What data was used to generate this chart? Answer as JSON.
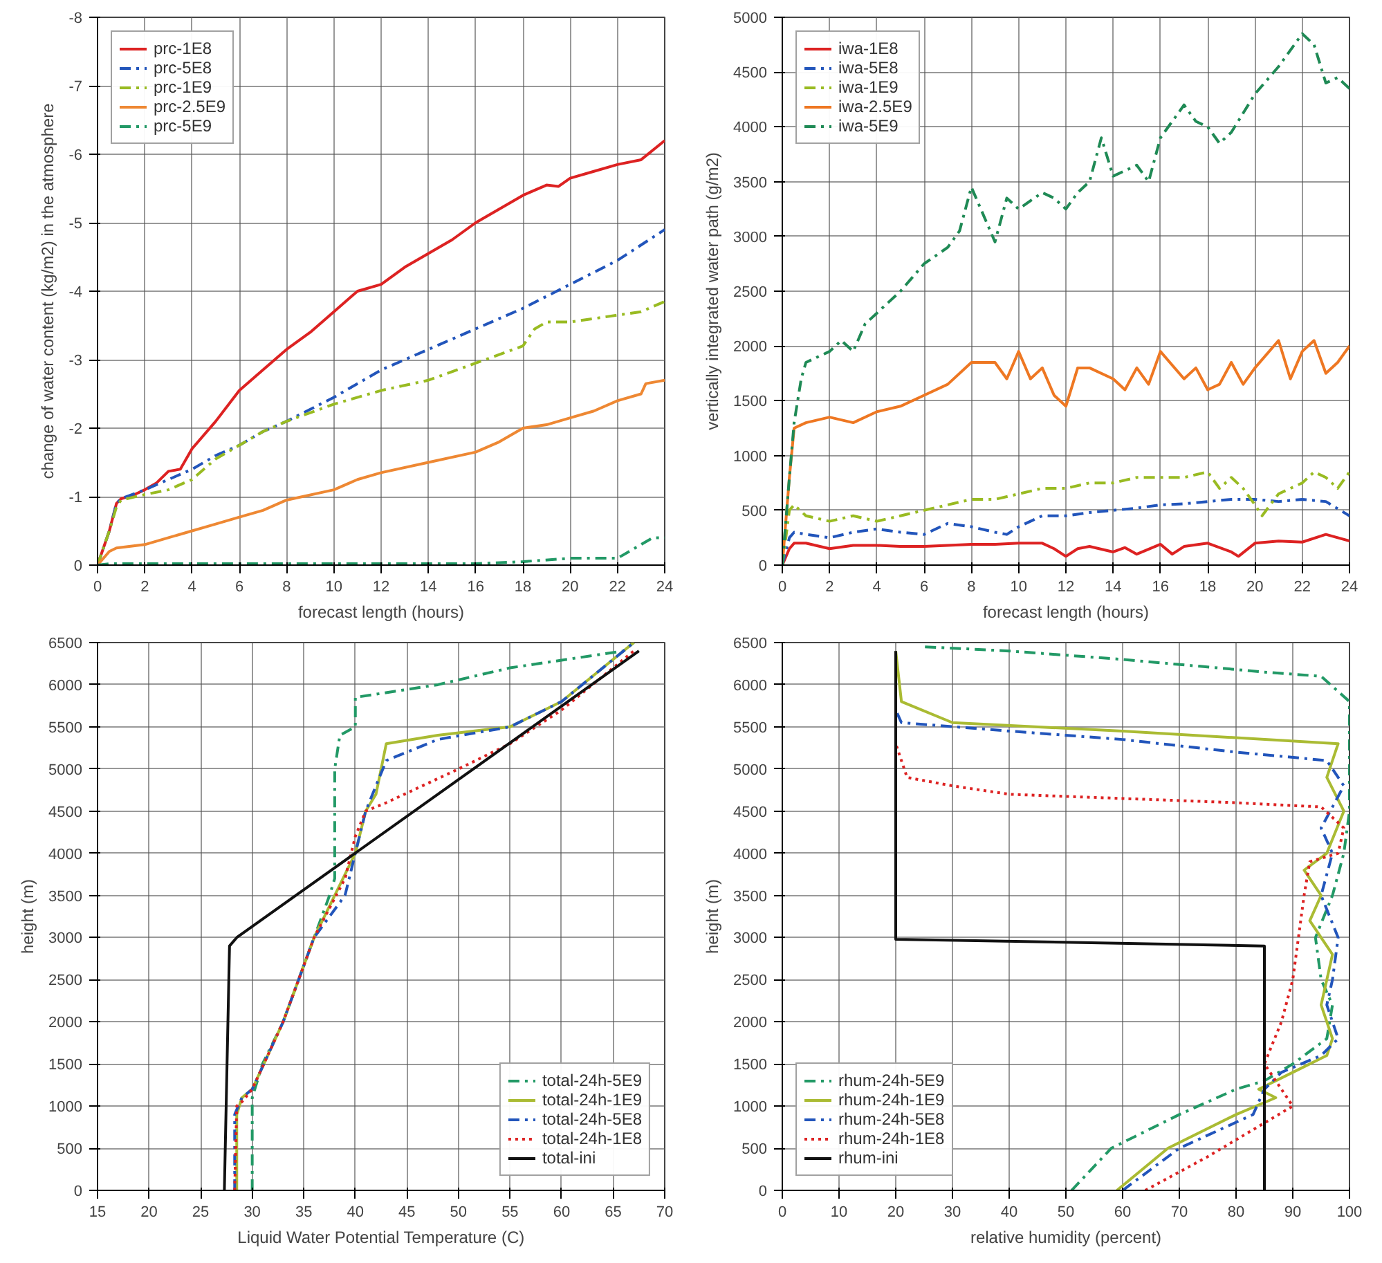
{
  "chart_data": [
    {
      "type": "line",
      "xlabel": "forecast length (hours)",
      "ylabel": "change of water content (kg/m2) in the atmosphere",
      "xlim": [
        0,
        24
      ],
      "ylim": [
        0,
        -8
      ],
      "xticks": [
        0,
        2,
        4,
        6,
        8,
        10,
        12,
        14,
        16,
        18,
        20,
        22,
        24
      ],
      "yticks": [
        0,
        -1,
        -2,
        -3,
        -4,
        -5,
        -6,
        -7,
        -8
      ],
      "grid": true,
      "legend": "top left",
      "series": [
        {
          "name": "prc-1E8",
          "color": "#dd2222",
          "line_style": "solid",
          "x": [
            0,
            0.5,
            0.8,
            1,
            1.5,
            2,
            2.5,
            3,
            3.5,
            4,
            5,
            6,
            7,
            8,
            9,
            10,
            11,
            12,
            13,
            14,
            15,
            16,
            17,
            18,
            19,
            19.5,
            20,
            21,
            22,
            23,
            24
          ],
          "values": [
            0,
            -0.5,
            -0.9,
            -0.97,
            -1.02,
            -1.1,
            -1.2,
            -1.37,
            -1.4,
            -1.7,
            -2.1,
            -2.55,
            -2.85,
            -3.15,
            -3.4,
            -3.7,
            -4.0,
            -4.1,
            -4.35,
            -4.55,
            -4.75,
            -5.0,
            -5.2,
            -5.4,
            -5.55,
            -5.53,
            -5.65,
            -5.75,
            -5.85,
            -5.92,
            -6.2
          ]
        },
        {
          "name": "prc-5E8",
          "color": "#2255bb",
          "line_style": "dashed",
          "x": [
            0,
            0.5,
            0.8,
            1,
            2,
            3,
            4,
            5,
            6,
            7,
            8,
            10,
            12,
            14,
            16,
            18,
            20,
            22,
            24
          ],
          "values": [
            0,
            -0.5,
            -0.9,
            -0.97,
            -1.1,
            -1.25,
            -1.4,
            -1.6,
            -1.75,
            -1.95,
            -2.1,
            -2.45,
            -2.85,
            -3.15,
            -3.45,
            -3.75,
            -4.1,
            -4.45,
            -4.9
          ]
        },
        {
          "name": "prc-1E9",
          "color": "#99bb22",
          "line_style": "dashed",
          "x": [
            0,
            0.5,
            0.8,
            1,
            2,
            3,
            4,
            5,
            6,
            7,
            8,
            10,
            12,
            14,
            16,
            18,
            18.5,
            19,
            20,
            21,
            22,
            23,
            24
          ],
          "values": [
            0,
            -0.5,
            -0.85,
            -0.95,
            -1.03,
            -1.1,
            -1.25,
            -1.55,
            -1.75,
            -1.95,
            -2.1,
            -2.35,
            -2.55,
            -2.7,
            -2.95,
            -3.2,
            -3.45,
            -3.55,
            -3.55,
            -3.6,
            -3.65,
            -3.7,
            -3.85
          ]
        },
        {
          "name": "prc-2.5E9",
          "color": "#ee8833",
          "line_style": "solid",
          "x": [
            0,
            0.5,
            0.8,
            2,
            3,
            4,
            5,
            6,
            7,
            8,
            10,
            11,
            12,
            14,
            16,
            17,
            18,
            19,
            20,
            21,
            22,
            23,
            23.2,
            24
          ],
          "values": [
            0,
            -0.2,
            -0.25,
            -0.3,
            -0.4,
            -0.5,
            -0.6,
            -0.7,
            -0.8,
            -0.95,
            -1.1,
            -1.25,
            -1.35,
            -1.5,
            -1.65,
            -1.8,
            -2.0,
            -2.05,
            -2.15,
            -2.25,
            -2.4,
            -2.5,
            -2.65,
            -2.7
          ]
        },
        {
          "name": "prc-5E9",
          "color": "#229966",
          "line_style": "dashed",
          "x": [
            0,
            0.5,
            16,
            18,
            20,
            22,
            22.5,
            23,
            23.5,
            24
          ],
          "values": [
            0,
            -0.02,
            -0.02,
            -0.05,
            -0.1,
            -0.1,
            -0.2,
            -0.3,
            -0.4,
            -0.4
          ]
        }
      ]
    },
    {
      "type": "line",
      "xlabel": "forecast length (hours)",
      "ylabel": "vertically integrated water path (g/m2)",
      "xlim": [
        0,
        24
      ],
      "ylim": [
        0,
        5000
      ],
      "xticks": [
        0,
        2,
        4,
        6,
        8,
        10,
        12,
        14,
        16,
        18,
        20,
        22,
        24
      ],
      "yticks": [
        0,
        500,
        1000,
        1500,
        2000,
        2500,
        3000,
        3500,
        4000,
        4500,
        5000
      ],
      "grid": true,
      "legend": "top left",
      "series": [
        {
          "name": "iwa-1E8",
          "color": "#dd2222",
          "line_style": "solid",
          "x": [
            0,
            0.3,
            0.5,
            1,
            2,
            3,
            4,
            5,
            6,
            7,
            8,
            9,
            10,
            11,
            11.5,
            12,
            12.5,
            13,
            14,
            14.5,
            15,
            16,
            16.5,
            17,
            18,
            19,
            19.3,
            20,
            21,
            22,
            23,
            24
          ],
          "values": [
            0,
            150,
            200,
            200,
            150,
            180,
            180,
            170,
            170,
            180,
            190,
            190,
            200,
            200,
            150,
            80,
            150,
            170,
            120,
            160,
            100,
            190,
            100,
            170,
            200,
            120,
            80,
            200,
            220,
            210,
            280,
            220
          ]
        },
        {
          "name": "iwa-5E8",
          "color": "#2255bb",
          "line_style": "dashed",
          "x": [
            0,
            0.3,
            0.5,
            1,
            2,
            3,
            4,
            5,
            6,
            7,
            8,
            9,
            9.5,
            10,
            11,
            12,
            13,
            14,
            15,
            16,
            17,
            18,
            19,
            20,
            21,
            22,
            23,
            24
          ],
          "values": [
            0,
            250,
            300,
            280,
            250,
            300,
            330,
            300,
            280,
            380,
            350,
            300,
            280,
            350,
            450,
            450,
            480,
            500,
            520,
            550,
            560,
            580,
            600,
            600,
            580,
            600,
            580,
            450
          ]
        },
        {
          "name": "iwa-1E9",
          "color": "#99bb22",
          "line_style": "dashed",
          "x": [
            0,
            0.3,
            0.5,
            1,
            2,
            3,
            4,
            5,
            6,
            7,
            8,
            9,
            10,
            11,
            12,
            13,
            14,
            15,
            16,
            17,
            18,
            18.5,
            19,
            19.5,
            20,
            20.3,
            21,
            22,
            22.5,
            23,
            23.5,
            24
          ],
          "values": [
            0,
            500,
            550,
            450,
            400,
            450,
            400,
            450,
            500,
            550,
            600,
            600,
            650,
            700,
            700,
            750,
            750,
            800,
            800,
            800,
            850,
            700,
            800,
            700,
            550,
            450,
            650,
            750,
            850,
            800,
            700,
            850
          ]
        },
        {
          "name": "iwa-2.5E9",
          "color": "#ee7722",
          "line_style": "solid",
          "x": [
            0,
            0.3,
            0.5,
            1,
            2,
            3,
            4,
            5,
            6,
            7,
            8,
            9,
            9.5,
            10,
            10.5,
            11,
            11.5,
            12,
            12.5,
            13,
            14,
            14.5,
            15,
            15.5,
            16,
            17,
            17.5,
            18,
            18.5,
            19,
            19.5,
            20,
            21,
            21.5,
            22,
            22.5,
            23,
            23.5,
            24
          ],
          "values": [
            0,
            800,
            1250,
            1300,
            1350,
            1300,
            1400,
            1450,
            1550,
            1650,
            1850,
            1850,
            1700,
            1950,
            1700,
            1800,
            1550,
            1450,
            1800,
            1800,
            1700,
            1600,
            1800,
            1650,
            1950,
            1700,
            1800,
            1600,
            1650,
            1850,
            1650,
            1800,
            2050,
            1700,
            1950,
            2050,
            1750,
            1850,
            2000
          ]
        },
        {
          "name": "iwa-5E9",
          "color": "#1f8a55",
          "line_style": "dashed",
          "x": [
            0,
            0.3,
            0.5,
            0.8,
            1,
            1.5,
            2,
            2.5,
            3,
            3.5,
            4,
            5,
            6,
            7,
            7.5,
            8,
            8.5,
            9,
            9.5,
            10,
            11,
            11.5,
            12,
            12.5,
            13,
            13.5,
            14,
            15,
            15.5,
            16,
            17,
            17.5,
            18,
            18.5,
            19,
            20,
            21,
            22,
            22.5,
            23,
            23.5,
            24
          ],
          "values": [
            0,
            800,
            1300,
            1700,
            1850,
            1900,
            1950,
            2050,
            1950,
            2200,
            2300,
            2500,
            2750,
            2900,
            3050,
            3450,
            3200,
            2950,
            3350,
            3250,
            3400,
            3350,
            3250,
            3400,
            3500,
            3900,
            3550,
            3650,
            3500,
            3900,
            4200,
            4050,
            4000,
            3850,
            3950,
            4300,
            4550,
            4850,
            4750,
            4400,
            4450,
            4350
          ]
        }
      ]
    },
    {
      "type": "line",
      "xlabel": "Liquid Water Potential Temperature (C)",
      "ylabel": "height (m)",
      "xlim": [
        15,
        70
      ],
      "ylim": [
        0,
        6500
      ],
      "xticks": [
        15,
        20,
        25,
        30,
        35,
        40,
        45,
        50,
        55,
        60,
        65,
        70
      ],
      "yticks": [
        0,
        500,
        1000,
        1500,
        2000,
        2500,
        3000,
        3500,
        4000,
        4500,
        5000,
        5500,
        6000,
        6500
      ],
      "grid": true,
      "legend": "bottom right",
      "series": [
        {
          "name": "total-24h-5E9",
          "color": "#229966",
          "line_style": "dashed",
          "x": [
            30,
            30,
            31,
            33,
            36,
            37.5,
            38,
            38,
            38,
            38.5,
            40,
            40,
            48,
            55,
            66,
            67
          ],
          "values": [
            0,
            1100,
            1500,
            2000,
            3000,
            3500,
            3700,
            4500,
            5000,
            5400,
            5500,
            5850,
            6000,
            6200,
            6400,
            6500
          ]
        },
        {
          "name": "total-24h-1E9",
          "color": "#aabb33",
          "line_style": "solid",
          "x": [
            28.5,
            28.5,
            29,
            30,
            33,
            36,
            38,
            40,
            41,
            42,
            43,
            48,
            55,
            60,
            67
          ],
          "values": [
            0,
            900,
            1100,
            1200,
            2000,
            3000,
            3500,
            4000,
            4500,
            4700,
            5300,
            5400,
            5500,
            5800,
            6500
          ]
        },
        {
          "name": "total-24h-5E8",
          "color": "#2255bb",
          "line_style": "dashed",
          "x": [
            28.3,
            28.3,
            29,
            30,
            33,
            36,
            39,
            40,
            41,
            42,
            43,
            48,
            55,
            60,
            67
          ],
          "values": [
            0,
            900,
            1100,
            1200,
            2000,
            3000,
            3500,
            4000,
            4500,
            4800,
            5100,
            5350,
            5500,
            5800,
            6500
          ]
        },
        {
          "name": "total-24h-1E8",
          "color": "#dd2222",
          "line_style": "dotted",
          "x": [
            28.3,
            28.5,
            29,
            30,
            33,
            36,
            39,
            40,
            41,
            43,
            50,
            55,
            60,
            67
          ],
          "values": [
            0,
            1000,
            1050,
            1200,
            2000,
            3000,
            3700,
            4200,
            4500,
            4600,
            5000,
            5300,
            5700,
            6400
          ]
        },
        {
          "name": "total-ini",
          "color": "#111111",
          "line_style": "solid",
          "x": [
            27.3,
            27.8,
            28.5,
            67.5
          ],
          "values": [
            0,
            2900,
            3000,
            6400
          ]
        }
      ]
    },
    {
      "type": "line",
      "xlabel": "relative humidity (percent)",
      "ylabel": "height (m)",
      "xlim": [
        0,
        100
      ],
      "ylim": [
        0,
        6500
      ],
      "xticks": [
        0,
        10,
        20,
        30,
        40,
        50,
        60,
        70,
        80,
        90,
        100
      ],
      "yticks": [
        0,
        500,
        1000,
        1500,
        2000,
        2500,
        3000,
        3500,
        4000,
        4500,
        5000,
        5500,
        6000,
        6500
      ],
      "grid": true,
      "legend": "bottom left",
      "series": [
        {
          "name": "rhum-24h-5E9",
          "color": "#229966",
          "line_style": "dashed",
          "x": [
            51,
            58,
            70,
            80,
            85,
            90,
            96,
            97,
            95,
            94,
            97,
            99,
            100,
            100,
            100,
            100,
            95,
            85,
            60,
            40,
            25
          ],
          "values": [
            0,
            500,
            900,
            1200,
            1300,
            1500,
            1800,
            2200,
            2500,
            3000,
            3500,
            4000,
            4500,
            5000,
            5500,
            5800,
            6100,
            6150,
            6300,
            6400,
            6450
          ]
        },
        {
          "name": "rhum-24h-1E9",
          "color": "#aabb33",
          "line_style": "solid",
          "x": [
            59,
            68,
            80,
            87,
            84,
            90,
            96,
            97,
            95,
            97,
            93,
            95,
            92,
            96,
            99,
            96,
            98,
            60,
            30,
            21,
            20
          ],
          "values": [
            0,
            500,
            900,
            1100,
            1200,
            1400,
            1600,
            1800,
            2200,
            2800,
            3200,
            3500,
            3800,
            4000,
            4500,
            4900,
            5300,
            5450,
            5550,
            5800,
            6400
          ]
        },
        {
          "name": "rhum-24h-5E8",
          "color": "#2255bb",
          "line_style": "dashed",
          "x": [
            60,
            70,
            83,
            85,
            88,
            95,
            98,
            96,
            97,
            98,
            95,
            97,
            95,
            99,
            96,
            80,
            60,
            40,
            21,
            20
          ],
          "values": [
            0,
            500,
            900,
            1200,
            1400,
            1600,
            1800,
            2200,
            2500,
            3000,
            3500,
            4000,
            4300,
            4800,
            5100,
            5200,
            5350,
            5450,
            5550,
            5700
          ]
        },
        {
          "name": "rhum-24h-1E8",
          "color": "#dd2222",
          "line_style": "dotted",
          "x": [
            64,
            75,
            85,
            90,
            88,
            85,
            88,
            90,
            91,
            92,
            93,
            98,
            99,
            95,
            80,
            60,
            40,
            30,
            22,
            20
          ],
          "values": [
            0,
            400,
            800,
            1000,
            1200,
            1500,
            2000,
            2500,
            3000,
            3500,
            3900,
            4000,
            4300,
            4550,
            4600,
            4650,
            4700,
            4800,
            4900,
            5300
          ]
        },
        {
          "name": "rhum-ini",
          "color": "#111111",
          "line_style": "solid",
          "x": [
            85,
            85,
            20,
            20
          ],
          "values": [
            0,
            2900,
            2980,
            6400
          ]
        }
      ]
    }
  ]
}
